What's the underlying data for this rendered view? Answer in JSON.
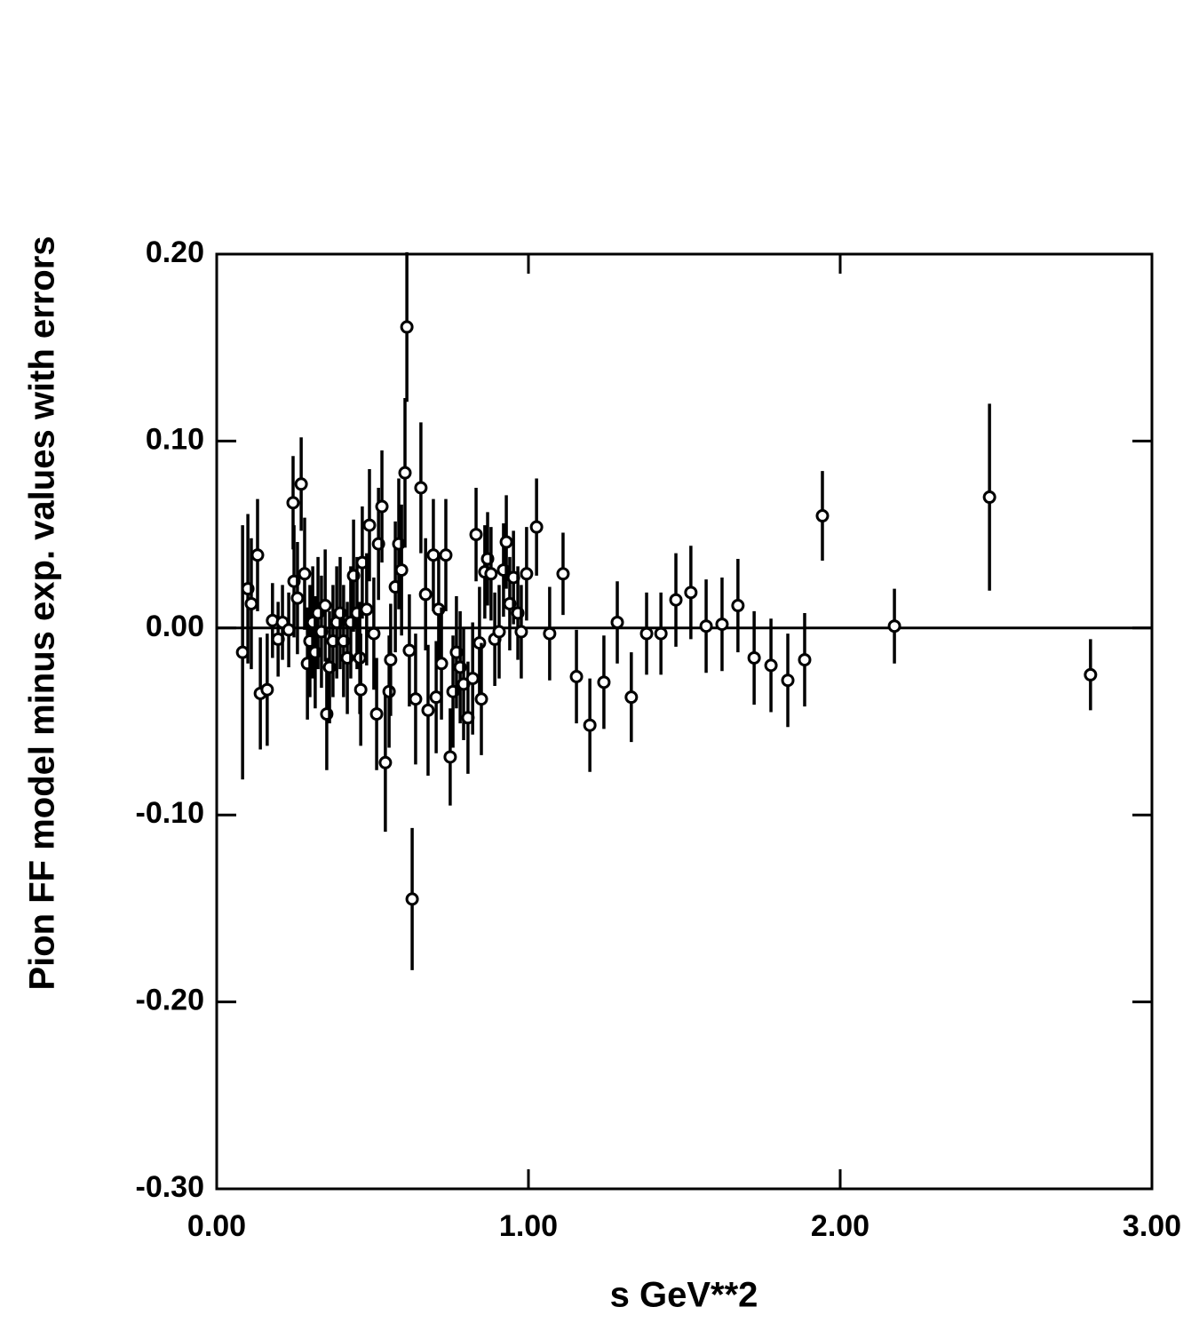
{
  "chart_data": {
    "type": "scatter",
    "xlabel": "s  GeV**2",
    "ylabel": "Pion FF model minus exp. values with errors",
    "xlim": [
      0,
      3
    ],
    "ylim": [
      -0.3,
      0.2
    ],
    "xticks": [
      {
        "value": 0,
        "label": "0.00"
      },
      {
        "value": 1,
        "label": "1.00"
      },
      {
        "value": 2,
        "label": "2.00"
      },
      {
        "value": 3,
        "label": "3.00"
      }
    ],
    "yticks": [
      {
        "value": -0.3,
        "label": "-0.30"
      },
      {
        "value": -0.2,
        "label": "-0.20"
      },
      {
        "value": -0.1,
        "label": "-0.10"
      },
      {
        "value": 0,
        "label": "0.00"
      },
      {
        "value": 0.1,
        "label": "0.10"
      },
      {
        "value": 0.2,
        "label": "0.20"
      }
    ],
    "hline": 0,
    "grid": false,
    "series": [
      {
        "color": "#000000",
        "x": [
          0.083,
          0.1,
          0.111,
          0.131,
          0.14,
          0.162,
          0.179,
          0.197,
          0.211,
          0.231,
          0.245,
          0.248,
          0.259,
          0.271,
          0.282,
          0.291,
          0.299,
          0.308,
          0.316,
          0.325,
          0.336,
          0.348,
          0.353,
          0.362,
          0.373,
          0.385,
          0.396,
          0.407,
          0.419,
          0.43,
          0.439,
          0.45,
          0.459,
          0.462,
          0.467,
          0.481,
          0.49,
          0.504,
          0.513,
          0.519,
          0.53,
          0.541,
          0.553,
          0.558,
          0.573,
          0.584,
          0.593,
          0.604,
          0.61,
          0.618,
          0.627,
          0.638,
          0.655,
          0.67,
          0.678,
          0.695,
          0.704,
          0.712,
          0.721,
          0.735,
          0.749,
          0.758,
          0.769,
          0.781,
          0.792,
          0.806,
          0.821,
          0.832,
          0.843,
          0.849,
          0.86,
          0.869,
          0.88,
          0.892,
          0.906,
          0.92,
          0.929,
          0.94,
          0.952,
          0.966,
          0.977,
          0.994,
          1.026,
          1.068,
          1.111,
          1.154,
          1.197,
          1.242,
          1.285,
          1.33,
          1.379,
          1.425,
          1.473,
          1.521,
          1.57,
          1.621,
          1.672,
          1.724,
          1.778,
          1.832,
          1.886,
          1.943,
          2.174,
          2.479,
          2.803
        ],
        "values": [
          -0.013,
          0.021,
          0.013,
          0.039,
          -0.035,
          -0.033,
          0.004,
          -0.006,
          0.003,
          -0.001,
          0.067,
          0.025,
          0.016,
          0.077,
          0.029,
          -0.019,
          -0.007,
          0.003,
          -0.013,
          0.008,
          -0.002,
          0.012,
          -0.046,
          -0.021,
          -0.007,
          0.003,
          0.008,
          -0.007,
          -0.016,
          0.003,
          0.028,
          0.008,
          -0.016,
          -0.033,
          0.035,
          0.01,
          0.055,
          -0.003,
          -0.046,
          0.045,
          0.065,
          -0.072,
          -0.034,
          -0.017,
          0.022,
          0.045,
          0.031,
          0.083,
          0.161,
          -0.012,
          -0.145,
          -0.038,
          0.075,
          0.018,
          -0.044,
          0.039,
          -0.037,
          0.01,
          -0.019,
          0.039,
          -0.069,
          -0.034,
          -0.013,
          -0.021,
          -0.03,
          -0.048,
          -0.027,
          0.05,
          -0.008,
          -0.038,
          0.03,
          0.037,
          0.029,
          -0.006,
          -0.002,
          0.031,
          0.046,
          0.013,
          0.027,
          0.008,
          -0.002,
          0.029,
          0.054,
          -0.003,
          0.029,
          -0.026,
          -0.052,
          -0.029,
          0.003,
          -0.037,
          -0.003,
          -0.003,
          0.015,
          0.019,
          0.001,
          0.002,
          0.012,
          -0.016,
          -0.02,
          -0.028,
          -0.017,
          0.06,
          0.001,
          0.07,
          -0.025
        ],
        "errors": [
          0.068,
          0.04,
          0.035,
          0.03,
          0.03,
          0.03,
          0.02,
          0.02,
          0.02,
          0.02,
          0.025,
          0.03,
          0.03,
          0.025,
          0.03,
          0.03,
          0.03,
          0.03,
          0.03,
          0.03,
          0.03,
          0.03,
          0.03,
          0.03,
          0.03,
          0.03,
          0.03,
          0.03,
          0.03,
          0.03,
          0.03,
          0.03,
          0.03,
          0.03,
          0.03,
          0.03,
          0.03,
          0.03,
          0.03,
          0.03,
          0.03,
          0.037,
          0.03,
          0.03,
          0.035,
          0.035,
          0.035,
          0.04,
          0.04,
          0.03,
          0.038,
          0.035,
          0.035,
          0.03,
          0.035,
          0.03,
          0.03,
          0.03,
          0.03,
          0.03,
          0.026,
          0.03,
          0.03,
          0.03,
          0.03,
          0.03,
          0.03,
          0.025,
          0.03,
          0.03,
          0.025,
          0.025,
          0.025,
          0.025,
          0.025,
          0.025,
          0.025,
          0.025,
          0.025,
          0.025,
          0.025,
          0.025,
          0.026,
          0.025,
          0.022,
          0.025,
          0.025,
          0.025,
          0.022,
          0.024,
          0.022,
          0.022,
          0.025,
          0.025,
          0.025,
          0.025,
          0.025,
          0.025,
          0.025,
          0.025,
          0.025,
          0.024,
          0.02,
          0.05,
          0.019
        ]
      }
    ]
  }
}
